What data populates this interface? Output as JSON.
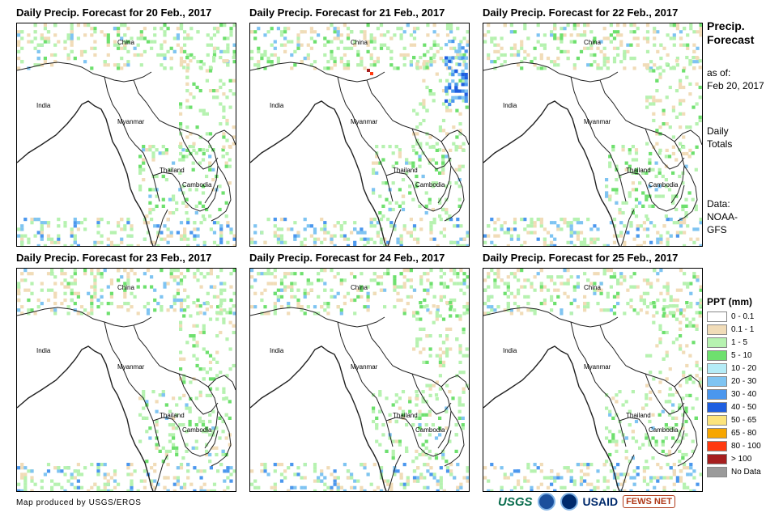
{
  "panels": [
    {
      "title": "Daily Precip. Forecast for 20 Feb., 2017",
      "labels": {
        "china": "China",
        "india": "India",
        "myanmar": "Myanmar",
        "thailand": "Thailand",
        "cambodia": "Cambodia"
      }
    },
    {
      "title": "Daily Precip. Forecast for 21 Feb., 2017",
      "labels": {
        "china": "China",
        "india": "India",
        "myanmar": "Myanmar",
        "thailand": "Thailand",
        "cambodia": "Cambodia"
      }
    },
    {
      "title": "Daily Precip. Forecast for 22 Feb., 2017",
      "labels": {
        "china": "China",
        "india": "India",
        "myanmar": "Myanmar",
        "thailand": "Thailand",
        "cambodia": "Cambodia"
      }
    },
    {
      "title": "Daily Precip. Forecast for 23 Feb., 2017",
      "labels": {
        "china": "China",
        "india": "India",
        "myanmar": "Myanmar",
        "thailand": "Thailand",
        "cambodia": "Cambodia"
      }
    },
    {
      "title": "Daily Precip. Forecast for 24 Feb., 2017",
      "labels": {
        "china": "China",
        "india": "India",
        "myanmar": "Myanmar",
        "thailand": "Thailand",
        "cambodia": "Cambodia"
      }
    },
    {
      "title": "Daily Precip. Forecast for 25 Feb., 2017",
      "labels": {
        "china": "China",
        "india": "India",
        "myanmar": "Myanmar",
        "thailand": "Thailand",
        "cambodia": "Cambodia"
      }
    }
  ],
  "side": {
    "title_line1": "Precip.",
    "title_line2": "Forecast",
    "asof_line1": "as of:",
    "asof_line2": "Feb 20, 2017",
    "totals_line1": "Daily",
    "totals_line2": "Totals",
    "data_line1": "Data:",
    "data_line2": "NOAA-",
    "data_line3": "GFS"
  },
  "legend": {
    "title": "PPT (mm)",
    "items": [
      {
        "label": "0 - 0.1",
        "color": "#ffffff"
      },
      {
        "label": "0.1 - 1",
        "color": "#f1dcb8"
      },
      {
        "label": "1 - 5",
        "color": "#b6f2b0"
      },
      {
        "label": "5 - 10",
        "color": "#6ee06e"
      },
      {
        "label": "10 - 20",
        "color": "#b5ecf7"
      },
      {
        "label": "20 - 30",
        "color": "#7fc4f2"
      },
      {
        "label": "30 - 40",
        "color": "#4b97ee"
      },
      {
        "label": "40 - 50",
        "color": "#1f5fe0"
      },
      {
        "label": "50 - 65",
        "color": "#fce47c"
      },
      {
        "label": "65 - 80",
        "color": "#f7a600"
      },
      {
        "label": "80 - 100",
        "color": "#ff3a10"
      },
      {
        "label": "> 100",
        "color": "#a61e1e"
      },
      {
        "label": "No Data",
        "color": "#9a9a9a"
      }
    ]
  },
  "footer": {
    "credit": "Map produced by USGS/EROS"
  },
  "logos": {
    "usgs": "USGS",
    "usaid": "USAID",
    "fews": "FEWS NET"
  }
}
